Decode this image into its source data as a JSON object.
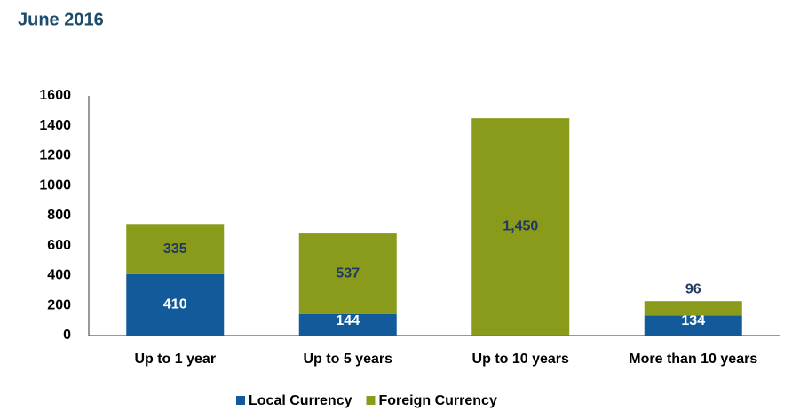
{
  "chart_data": {
    "type": "stacked_bar",
    "title": "June 2016",
    "categories": [
      "Up to 1 year",
      "Up to 5 years",
      "Up to 10 years",
      "More than 10 years"
    ],
    "series": [
      {
        "name": "Local Currency",
        "color": "#135a9b",
        "values": [
          410,
          144,
          1,
          134
        ]
      },
      {
        "name": "Foreign Currency",
        "color": "#8a9b1c",
        "values": [
          335,
          537,
          1450,
          96
        ],
        "value_labels": [
          "335",
          "537",
          "1,450",
          "96"
        ]
      }
    ],
    "ylim": [
      0,
      1600
    ],
    "yticks": [
      0,
      200,
      400,
      600,
      800,
      1000,
      1200,
      1400,
      1600
    ],
    "grid": false,
    "legend": "bottom"
  }
}
